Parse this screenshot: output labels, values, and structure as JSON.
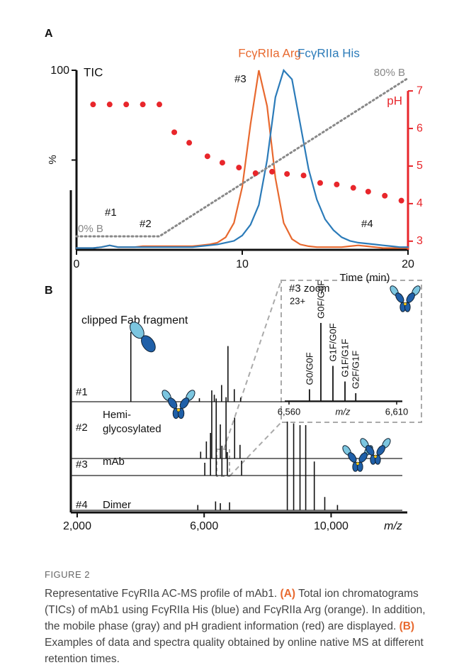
{
  "panel_a_label": "A",
  "panel_b_label": "B",
  "chart_data": [
    {
      "type": "line",
      "x": [
        0,
        0.5,
        1,
        1.5,
        2,
        2.5,
        3,
        3.5,
        4,
        4.5,
        5,
        5.5,
        6,
        6.5,
        7,
        7.5,
        8,
        8.5,
        9,
        9.5,
        10,
        10.5,
        11,
        11.5,
        12,
        12.5,
        13,
        13.5,
        14,
        14.5,
        15,
        15.5,
        16,
        16.5,
        17,
        17.5,
        18,
        18.5,
        19,
        19.5,
        20
      ],
      "series": [
        {
          "name": "FcγRIIa Arg",
          "color": "#e8692f",
          "style": "line",
          "values": [
            1,
            1,
            1,
            1.5,
            2.5,
            1.5,
            1.5,
            1.5,
            2,
            2,
            2,
            2,
            2,
            2,
            2,
            2.5,
            3,
            4,
            7,
            15,
            35,
            70,
            100,
            80,
            40,
            15,
            6,
            3,
            2,
            1.5,
            1.5,
            1.5,
            1.5,
            2,
            2.5,
            2,
            1.5,
            1,
            1,
            1,
            1
          ]
        },
        {
          "name": "FcγRIIa His",
          "color": "#2b7bb9",
          "style": "line",
          "values": [
            1,
            1,
            1,
            1.5,
            2.5,
            1.5,
            1.5,
            1.5,
            1.5,
            1.5,
            1.5,
            1.5,
            1.5,
            1.5,
            1.5,
            2,
            2.5,
            3,
            4,
            5,
            8,
            14,
            25,
            50,
            85,
            100,
            95,
            70,
            45,
            28,
            17,
            11,
            7,
            5,
            4,
            3.5,
            3,
            2.5,
            2,
            1.5,
            1.5
          ]
        },
        {
          "color": "#888888",
          "style": "dotted",
          "x": [
            0,
            5,
            20
          ],
          "values": [
            7.5,
            7.5,
            95.6
          ]
        },
        {
          "color": "#e8262b",
          "style": "points",
          "axis": "y2",
          "x": [
            1,
            2,
            3,
            4,
            5,
            5.9,
            6.8,
            7.9,
            8.8,
            9.8,
            10.8,
            11.8,
            12.7,
            13.7,
            14.7,
            15.7,
            16.7,
            17.6,
            18.6,
            19.6
          ],
          "values": [
            6.64,
            6.64,
            6.64,
            6.64,
            6.64,
            5.9,
            5.62,
            5.26,
            5.09,
            4.96,
            4.81,
            4.85,
            4.79,
            4.75,
            4.55,
            4.51,
            4.42,
            4.32,
            4.21,
            4.08
          ]
        }
      ],
      "xlim": [
        0,
        20
      ],
      "xticks": [
        0,
        10,
        20
      ],
      "xlabel": "Time (min)",
      "ylim": [
        0,
        100
      ],
      "yticks": [
        100
      ],
      "ylabel": "%",
      "y2lim": [
        2.77,
        7.55
      ],
      "y2ticks": [
        3,
        4,
        5,
        6,
        7
      ],
      "y2label": "pH",
      "y2color": "#e8262b",
      "annotations": [
        "TIC",
        "#1",
        "#2",
        "#3",
        "#4",
        "0% B",
        "80% B"
      ]
    },
    {
      "type": "spectrum",
      "series": [
        {
          "name": "#1",
          "label": [
            "clipped Fab fragment"
          ],
          "x": [
            3690,
            5850,
            6320,
            6550,
            6750,
            6950,
            7150
          ],
          "values": [
            100,
            5,
            10,
            24,
            80,
            18,
            6
          ]
        },
        {
          "name": "#2",
          "label": [
            "Hemi-",
            "glycosylated"
          ],
          "x": [
            5890,
            6070,
            6240,
            6380,
            6510,
            6690,
            6960,
            7130
          ],
          "values": [
            10,
            25,
            100,
            88,
            50,
            90,
            60,
            20
          ]
        },
        {
          "name": "#3",
          "label": [
            "mAb"
          ],
          "x": [
            6020,
            6200,
            6380,
            6560,
            6730,
            7180
          ],
          "values": [
            30,
            100,
            85,
            70,
            55,
            35
          ]
        },
        {
          "name": "#4",
          "label": [
            "Dimer"
          ],
          "x": [
            5800,
            6360,
            6510,
            6800,
            8620,
            8820,
            9020,
            9200,
            9470,
            9800,
            10200
          ],
          "values": [
            6,
            10,
            8,
            9,
            100,
            98,
            96,
            96,
            55,
            15,
            6
          ]
        }
      ],
      "xlim": [
        1800,
        12400
      ],
      "xticks": [
        {
          "value": 2000,
          "label": "2,000"
        },
        {
          "value": 6000,
          "label": "6,000"
        },
        {
          "value": 10000,
          "label": "10,000"
        }
      ],
      "xlabel": "m/z"
    },
    {
      "type": "spectrum",
      "title": "#3 zoom",
      "charge": "23+",
      "series": [
        {
          "x": [
            6569.5,
            6574.8,
            6580.4,
            6586,
            6591
          ],
          "values": [
            15,
            100,
            45,
            25,
            10
          ],
          "peak_labels": [
            "G0/G0F",
            "G0F/G0F",
            "G1F/G0F",
            "G1F/G1F",
            "G2F/G1F"
          ]
        }
      ],
      "xlim": [
        6557,
        6614
      ],
      "xticks": [
        {
          "value": 6560,
          "label": "6,560"
        },
        {
          "value": 6610,
          "label": "6,610"
        }
      ],
      "xlabel": "m/z"
    }
  ],
  "caption": {
    "label": "FIGURE 2",
    "text": [
      {
        "bold": false,
        "text": "Representative FcγRIIa AC-MS profile of mAb1. "
      },
      {
        "bold": true,
        "text": "(A)"
      },
      {
        "bold": false,
        "text": " Total ion chromatograms (TICs) of mAb1 using FcγRIIa His (blue) and FcγRIIa Arg (orange). In addition, the mobile phase (gray) and pH gradient information (red) are displayed. "
      },
      {
        "bold": true,
        "text": "(B)"
      },
      {
        "bold": false,
        "text": " Examples of data and spectra quality obtained by online native MS at different retention times."
      }
    ]
  }
}
